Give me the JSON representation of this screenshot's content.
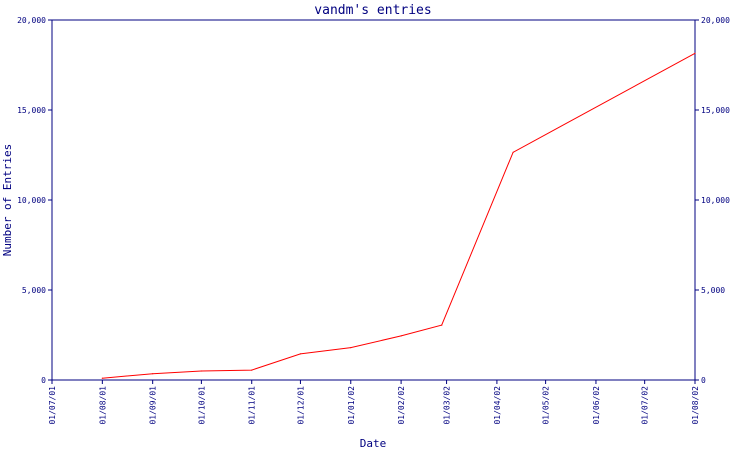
{
  "colors": {
    "axis": "#000080",
    "series": "#ff0000",
    "background": "#ffffff"
  },
  "chart_data": {
    "type": "line",
    "title": "vandm's entries",
    "xlabel": "Date",
    "ylabel": "Number of Entries",
    "ylim": [
      0,
      20000
    ],
    "xlim": [
      "2001-07-01",
      "2002-08-01"
    ],
    "grid": false,
    "legend": "none",
    "y_ticks": [
      0,
      5000,
      10000,
      15000,
      20000
    ],
    "y_tick_labels": [
      "0",
      "5,000",
      "10,000",
      "15,000",
      "20,000"
    ],
    "x_ticks": [
      "2001-07-01",
      "2001-08-01",
      "2001-09-01",
      "2001-10-01",
      "2001-11-01",
      "2001-12-01",
      "2002-01-01",
      "2002-02-01",
      "2002-03-01",
      "2002-04-01",
      "2002-05-01",
      "2002-06-01",
      "2002-07-01",
      "2002-08-01"
    ],
    "x_tick_labels": [
      "01/07/01",
      "01/08/01",
      "01/09/01",
      "01/10/01",
      "01/11/01",
      "01/12/01",
      "01/01/02",
      "01/02/02",
      "01/03/02",
      "01/04/02",
      "01/05/02",
      "01/06/02",
      "01/07/02",
      "01/08/02"
    ],
    "series": [
      {
        "x": [
          "2001-08-01",
          "2001-09-01",
          "2001-10-01",
          "2001-11-01",
          "2001-12-01",
          "2002-01-01",
          "2002-02-01",
          "2002-02-26",
          "2002-04-11",
          "2002-08-01"
        ],
        "y": [
          100,
          350,
          500,
          550,
          1450,
          1800,
          2450,
          3050,
          12650,
          18150
        ]
      }
    ]
  }
}
